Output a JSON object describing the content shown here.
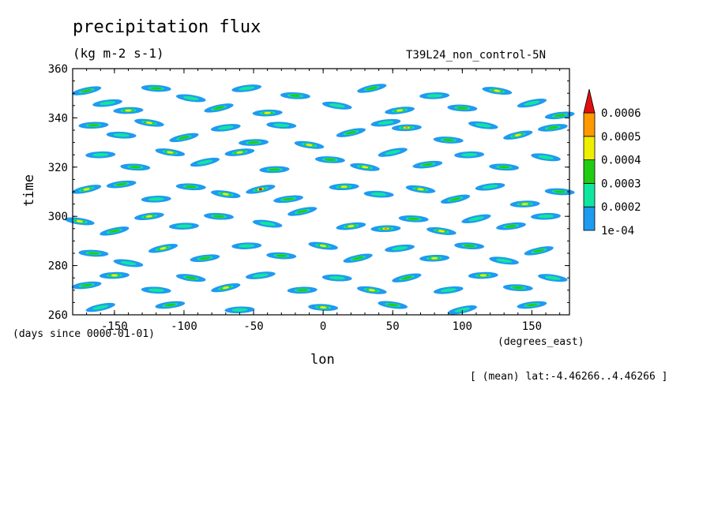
{
  "title": "precipitation flux",
  "units": "(kg m-2 s-1)",
  "run_label": "T39L24_non_control-5N",
  "footnote": "[ (mean) lat:-4.46266..4.46266 ]",
  "chart_data": {
    "type": "heatmap",
    "xlabel": "lon",
    "xunits": "(degrees_east)",
    "ylabel": "time",
    "yunits": "(days since 0000-01-01)",
    "xlim": [
      -180,
      177
    ],
    "ylim": [
      260,
      360
    ],
    "xticks": [
      -150,
      -100,
      -50,
      0,
      50,
      100,
      150
    ],
    "xtick_labels": [
      "-150",
      "-100",
      "-50",
      "0",
      "50",
      "100",
      "150"
    ],
    "yticks": [
      260,
      280,
      300,
      320,
      340,
      360
    ],
    "ytick_labels": [
      "260",
      "280",
      "300",
      "320",
      "340",
      "360"
    ],
    "colorbar": {
      "levels": [
        "1e-04",
        "0.0002",
        "0.0003",
        "0.0004",
        "0.0005",
        "0.0006"
      ],
      "colors": [
        "#1e9bf0",
        "#11e6a0",
        "#22cc11",
        "#eeee00",
        "#ff9900",
        "#e01010"
      ]
    },
    "cells": [
      {
        "lon": -170,
        "time": 351,
        "level": 2
      },
      {
        "lon": -155,
        "time": 346,
        "level": 1
      },
      {
        "lon": -140,
        "time": 343,
        "level": 3
      },
      {
        "lon": -120,
        "time": 352,
        "level": 2
      },
      {
        "lon": -95,
        "time": 348,
        "level": 1
      },
      {
        "lon": -75,
        "time": 344,
        "level": 2
      },
      {
        "lon": -55,
        "time": 352,
        "level": 1
      },
      {
        "lon": -40,
        "time": 342,
        "level": 3
      },
      {
        "lon": -20,
        "time": 349,
        "level": 2
      },
      {
        "lon": 10,
        "time": 345,
        "level": 1
      },
      {
        "lon": 35,
        "time": 352,
        "level": 2
      },
      {
        "lon": 55,
        "time": 343,
        "level": 3
      },
      {
        "lon": 80,
        "time": 349,
        "level": 1
      },
      {
        "lon": 100,
        "time": 344,
        "level": 2
      },
      {
        "lon": 125,
        "time": 351,
        "level": 3
      },
      {
        "lon": 150,
        "time": 346,
        "level": 1
      },
      {
        "lon": 170,
        "time": 341,
        "level": 2
      },
      {
        "lon": -165,
        "time": 337,
        "level": 2
      },
      {
        "lon": -145,
        "time": 333,
        "level": 1
      },
      {
        "lon": -125,
        "time": 338,
        "level": 3
      },
      {
        "lon": -100,
        "time": 332,
        "level": 2
      },
      {
        "lon": -70,
        "time": 336,
        "level": 1
      },
      {
        "lon": -50,
        "time": 330,
        "level": 2
      },
      {
        "lon": -30,
        "time": 337,
        "level": 1
      },
      {
        "lon": -10,
        "time": 329,
        "level": 3
      },
      {
        "lon": 20,
        "time": 334,
        "level": 2
      },
      {
        "lon": 45,
        "time": 338,
        "level": 1
      },
      {
        "lon": 60,
        "time": 336,
        "level": 4
      },
      {
        "lon": 90,
        "time": 331,
        "level": 2
      },
      {
        "lon": 115,
        "time": 337,
        "level": 1
      },
      {
        "lon": 140,
        "time": 333,
        "level": 3
      },
      {
        "lon": 165,
        "time": 336,
        "level": 2
      },
      {
        "lon": -160,
        "time": 325,
        "level": 1
      },
      {
        "lon": -135,
        "time": 320,
        "level": 2
      },
      {
        "lon": -110,
        "time": 326,
        "level": 3
      },
      {
        "lon": -85,
        "time": 322,
        "level": 1
      },
      {
        "lon": -60,
        "time": 326,
        "level": 3
      },
      {
        "lon": -35,
        "time": 319,
        "level": 2
      },
      {
        "lon": 5,
        "time": 323,
        "level": 2
      },
      {
        "lon": 30,
        "time": 320,
        "level": 3
      },
      {
        "lon": 50,
        "time": 326,
        "level": 1
      },
      {
        "lon": 75,
        "time": 321,
        "level": 2
      },
      {
        "lon": 105,
        "time": 325,
        "level": 1
      },
      {
        "lon": 130,
        "time": 320,
        "level": 2
      },
      {
        "lon": 160,
        "time": 324,
        "level": 1
      },
      {
        "lon": -170,
        "time": 311,
        "level": 3
      },
      {
        "lon": -145,
        "time": 313,
        "level": 2
      },
      {
        "lon": -120,
        "time": 307,
        "level": 1
      },
      {
        "lon": -95,
        "time": 312,
        "level": 2
      },
      {
        "lon": -70,
        "time": 309,
        "level": 3
      },
      {
        "lon": -45,
        "time": 311,
        "level": 5
      },
      {
        "lon": -25,
        "time": 307,
        "level": 2
      },
      {
        "lon": 15,
        "time": 312,
        "level": 3
      },
      {
        "lon": 40,
        "time": 309,
        "level": 1
      },
      {
        "lon": 70,
        "time": 311,
        "level": 3
      },
      {
        "lon": 95,
        "time": 307,
        "level": 2
      },
      {
        "lon": 120,
        "time": 312,
        "level": 1
      },
      {
        "lon": 145,
        "time": 305,
        "level": 3
      },
      {
        "lon": 170,
        "time": 310,
        "level": 2
      },
      {
        "lon": -175,
        "time": 298,
        "level": 3
      },
      {
        "lon": -150,
        "time": 294,
        "level": 2
      },
      {
        "lon": -125,
        "time": 300,
        "level": 3
      },
      {
        "lon": -100,
        "time": 296,
        "level": 1
      },
      {
        "lon": -75,
        "time": 300,
        "level": 2
      },
      {
        "lon": -40,
        "time": 297,
        "level": 1
      },
      {
        "lon": -15,
        "time": 302,
        "level": 2
      },
      {
        "lon": 20,
        "time": 296,
        "level": 3
      },
      {
        "lon": 45,
        "time": 295,
        "level": 4
      },
      {
        "lon": 65,
        "time": 299,
        "level": 2
      },
      {
        "lon": 85,
        "time": 294,
        "level": 3
      },
      {
        "lon": 110,
        "time": 299,
        "level": 1
      },
      {
        "lon": 135,
        "time": 296,
        "level": 2
      },
      {
        "lon": 160,
        "time": 300,
        "level": 1
      },
      {
        "lon": -165,
        "time": 285,
        "level": 2
      },
      {
        "lon": -140,
        "time": 281,
        "level": 1
      },
      {
        "lon": -115,
        "time": 287,
        "level": 3
      },
      {
        "lon": -85,
        "time": 283,
        "level": 2
      },
      {
        "lon": -55,
        "time": 288,
        "level": 1
      },
      {
        "lon": -30,
        "time": 284,
        "level": 2
      },
      {
        "lon": 0,
        "time": 288,
        "level": 3
      },
      {
        "lon": 25,
        "time": 283,
        "level": 2
      },
      {
        "lon": 55,
        "time": 287,
        "level": 1
      },
      {
        "lon": 80,
        "time": 283,
        "level": 3
      },
      {
        "lon": 105,
        "time": 288,
        "level": 2
      },
      {
        "lon": 130,
        "time": 282,
        "level": 1
      },
      {
        "lon": 155,
        "time": 286,
        "level": 2
      },
      {
        "lon": -170,
        "time": 272,
        "level": 2
      },
      {
        "lon": -150,
        "time": 276,
        "level": 3
      },
      {
        "lon": -120,
        "time": 270,
        "level": 1
      },
      {
        "lon": -95,
        "time": 275,
        "level": 2
      },
      {
        "lon": -70,
        "time": 271,
        "level": 3
      },
      {
        "lon": -45,
        "time": 276,
        "level": 1
      },
      {
        "lon": -15,
        "time": 270,
        "level": 2
      },
      {
        "lon": 10,
        "time": 275,
        "level": 1
      },
      {
        "lon": 35,
        "time": 270,
        "level": 3
      },
      {
        "lon": 60,
        "time": 275,
        "level": 2
      },
      {
        "lon": 90,
        "time": 270,
        "level": 1
      },
      {
        "lon": 115,
        "time": 276,
        "level": 3
      },
      {
        "lon": 140,
        "time": 271,
        "level": 2
      },
      {
        "lon": 165,
        "time": 275,
        "level": 1
      },
      {
        "lon": -160,
        "time": 263,
        "level": 1
      },
      {
        "lon": -110,
        "time": 264,
        "level": 2
      },
      {
        "lon": -60,
        "time": 262,
        "level": 1
      },
      {
        "lon": 0,
        "time": 263,
        "level": 3
      },
      {
        "lon": 50,
        "time": 264,
        "level": 2
      },
      {
        "lon": 100,
        "time": 262,
        "level": 1
      },
      {
        "lon": 150,
        "time": 264,
        "level": 2
      }
    ]
  }
}
